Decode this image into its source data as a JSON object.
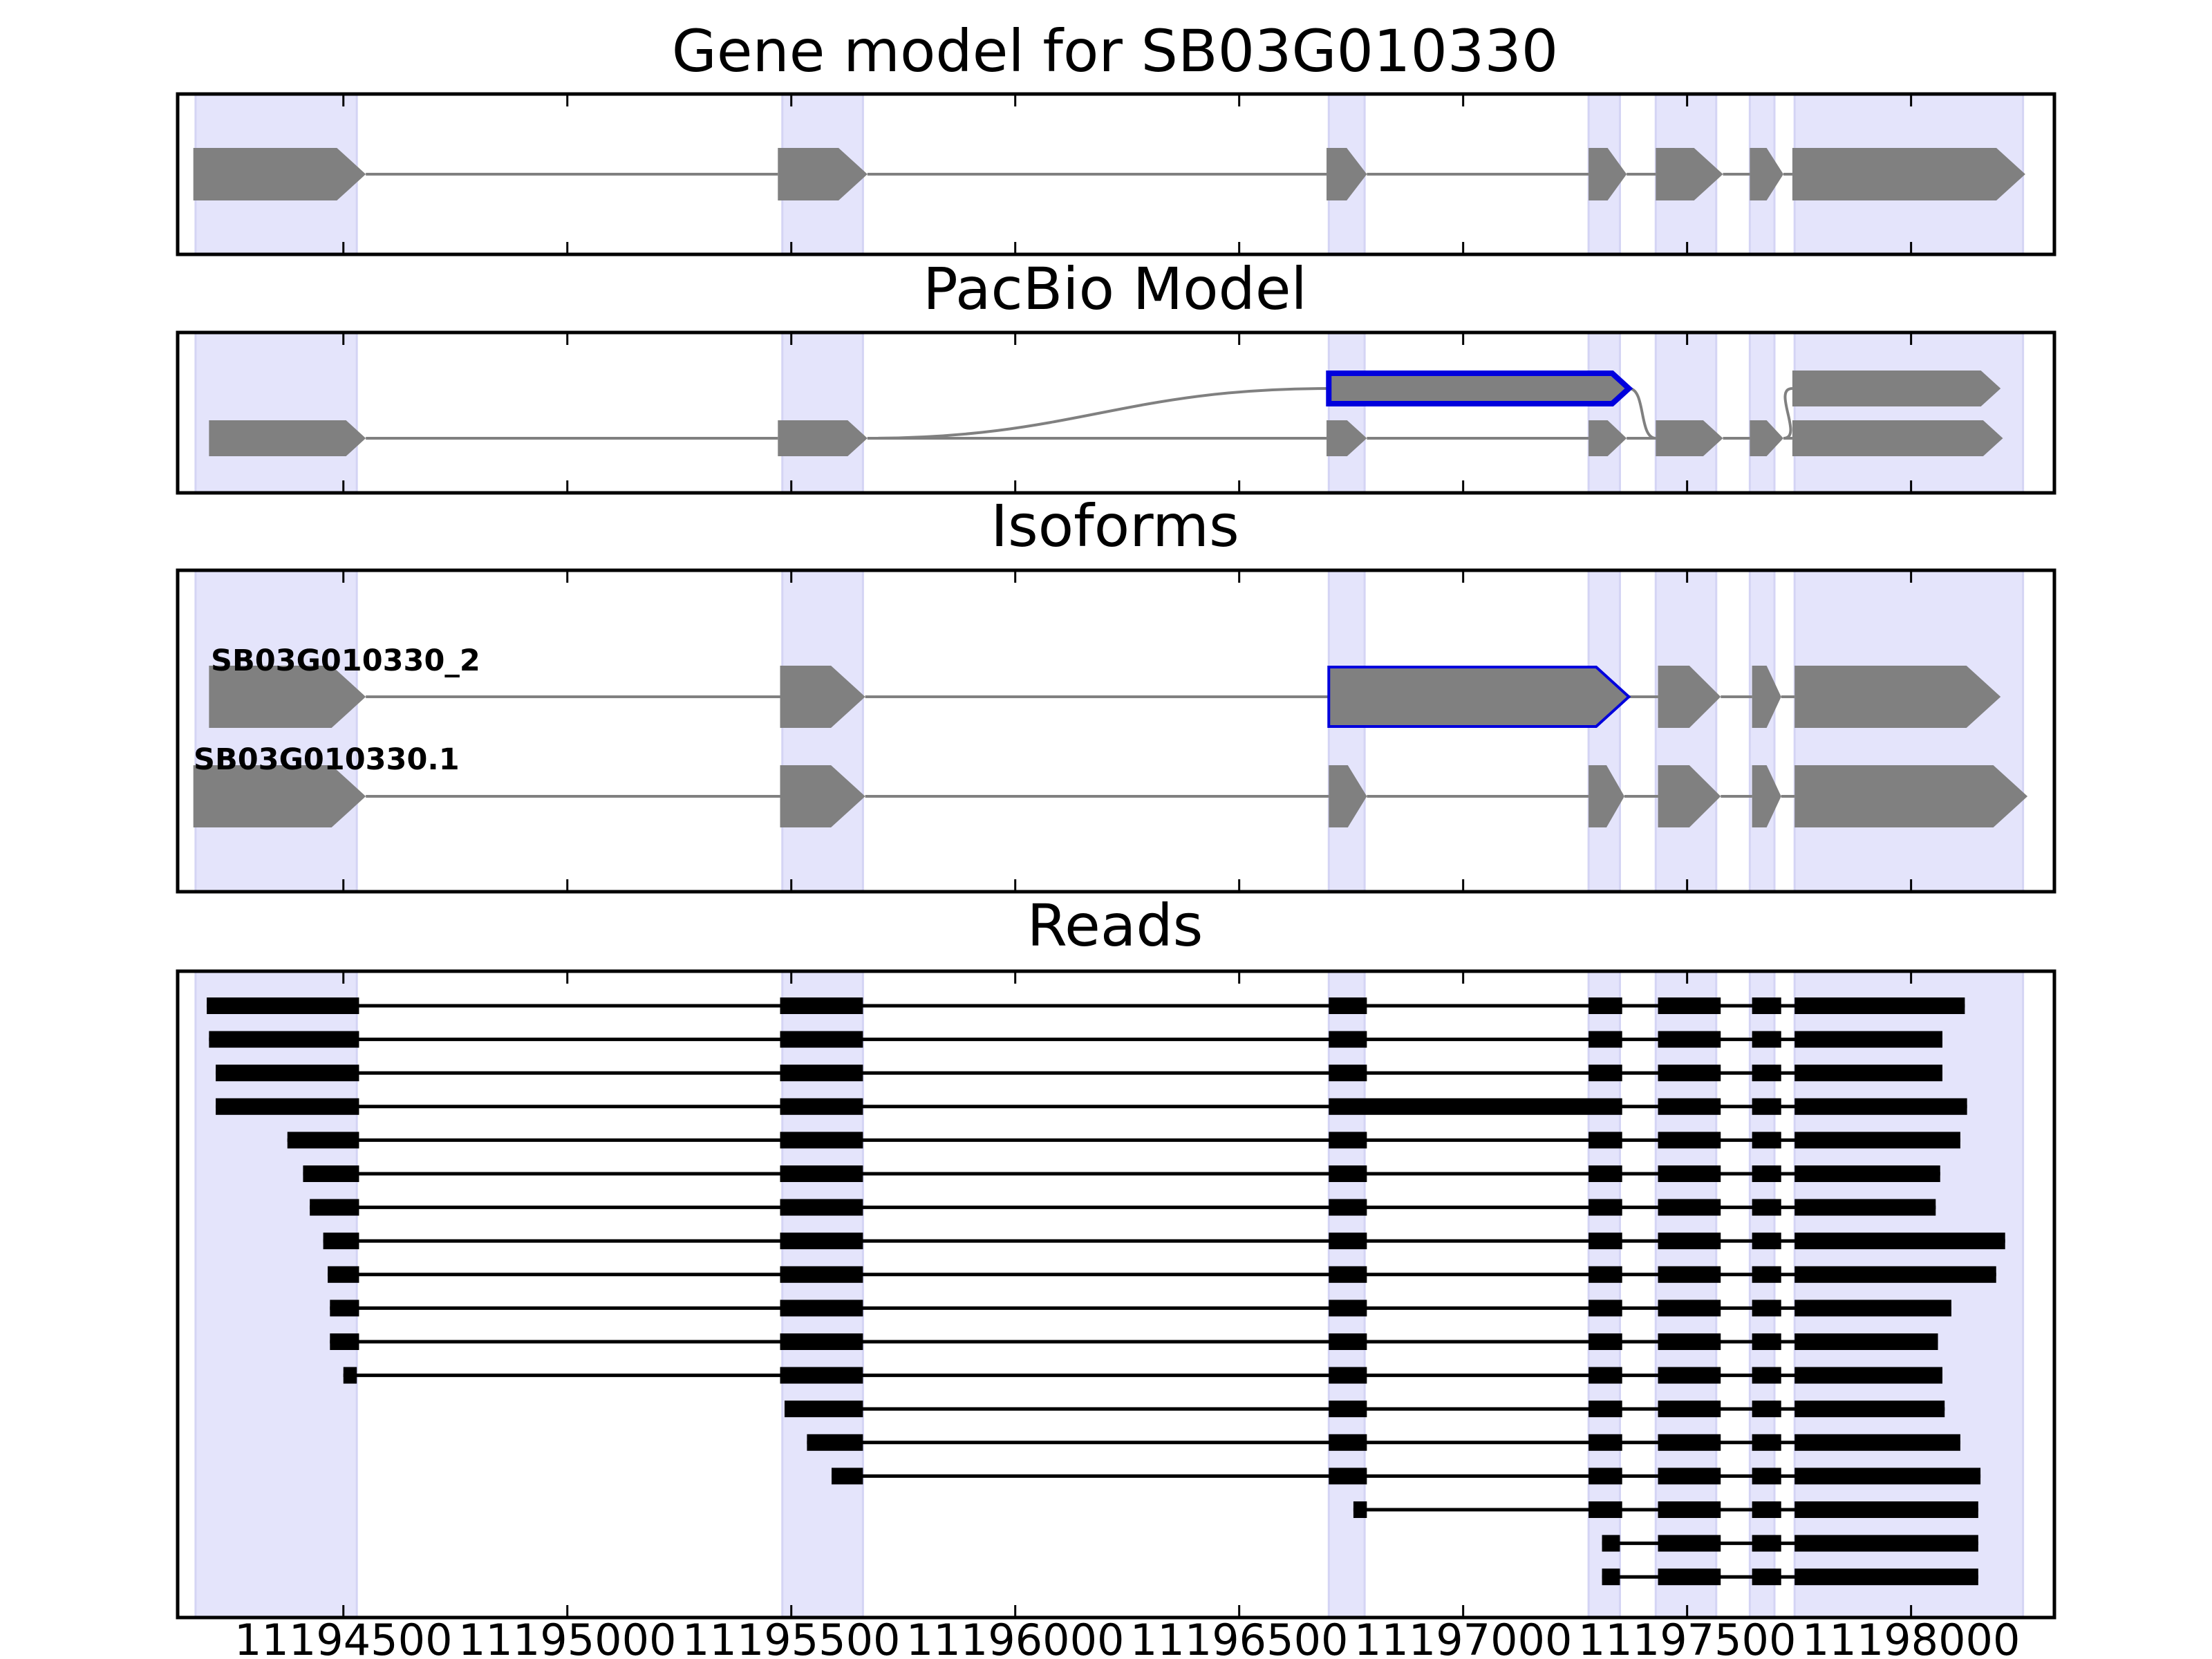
{
  "figure": {
    "panels": [
      {
        "id": "gene-model",
        "title": "Gene model for SB03G010330"
      },
      {
        "id": "pacbio-model",
        "title": "PacBio Model"
      },
      {
        "id": "isoforms",
        "title": "Isoforms"
      },
      {
        "id": "reads",
        "title": "Reads"
      }
    ],
    "x_axis": {
      "ticks": [
        11194500,
        11195000,
        11195500,
        11196000,
        11196500,
        11197000,
        11197500,
        11198000
      ],
      "tick_labels": [
        "11194500",
        "11195000",
        "11195500",
        "11196000",
        "11196500",
        "11197000",
        "11197500",
        "11198000"
      ],
      "xlim": [
        11194130,
        11198320
      ]
    },
    "colors": {
      "exon": "#808080",
      "intron": "#808080",
      "highlight_exon_outline": "#0000dd",
      "read": "#000000",
      "exon_shading": "#e4e4fb"
    },
    "isoform_labels": [
      "SB03G010330_2",
      "SB03G010330.1"
    ]
  },
  "chart_data": {
    "type": "gene_structure",
    "x_unit": "genomic coordinate",
    "shaded_exon_regions": [
      [
        11194170,
        11194530
      ],
      [
        11195480,
        11195660
      ],
      [
        11196700,
        11196780
      ],
      [
        11197280,
        11197350
      ],
      [
        11197430,
        11197565
      ],
      [
        11197640,
        11197695
      ],
      [
        11197740,
        11198250
      ]
    ],
    "gene_model": {
      "exons": [
        [
          11194165,
          11194550
        ],
        [
          11195470,
          11195670
        ],
        [
          11196695,
          11196785
        ],
        [
          11197280,
          11197365
        ],
        [
          11197430,
          11197580
        ],
        [
          11197640,
          11197715
        ],
        [
          11197735,
          11198255
        ]
      ]
    },
    "pacbio_model": {
      "tracks": [
        {
          "row": 0,
          "exons": [
            [
              11196700,
              11197370
            ],
            [
              11197735,
              11198200
            ]
          ],
          "highlighted_exon": 0
        },
        {
          "row": 1,
          "exons": [
            [
              11194200,
              11194550
            ],
            [
              11195470,
              11195670
            ],
            [
              11196695,
              11196785
            ],
            [
              11197280,
              11197365
            ],
            [
              11197430,
              11197580
            ],
            [
              11197640,
              11197715
            ],
            [
              11197735,
              11198205
            ]
          ]
        }
      ]
    },
    "isoforms": [
      {
        "name": "SB03G010330_2",
        "exons": [
          [
            11194200,
            11194550
          ],
          [
            11195475,
            11195665
          ],
          [
            11196700,
            11197370
          ],
          [
            11197435,
            11197575
          ],
          [
            11197645,
            11197710
          ],
          [
            11197740,
            11198200
          ]
        ],
        "highlighted_exon": 2
      },
      {
        "name": "SB03G010330.1",
        "exons": [
          [
            11194165,
            11194550
          ],
          [
            11195475,
            11195665
          ],
          [
            11196700,
            11196785
          ],
          [
            11197280,
            11197360
          ],
          [
            11197435,
            11197575
          ],
          [
            11197645,
            11197710
          ],
          [
            11197740,
            11198260
          ]
        ]
      }
    ],
    "reads": [
      {
        "exons": [
          [
            11194195,
            11194535
          ],
          [
            11195475,
            11195660
          ],
          [
            11196700,
            11196785
          ],
          [
            11197280,
            11197355
          ],
          [
            11197435,
            11197575
          ],
          [
            11197645,
            11197710
          ],
          [
            11197740,
            11198120
          ]
        ]
      },
      {
        "exons": [
          [
            11194200,
            11194535
          ],
          [
            11195475,
            11195660
          ],
          [
            11196700,
            11196785
          ],
          [
            11197280,
            11197355
          ],
          [
            11197435,
            11197575
          ],
          [
            11197645,
            11197710
          ],
          [
            11197740,
            11198070
          ]
        ]
      },
      {
        "exons": [
          [
            11194215,
            11194535
          ],
          [
            11195475,
            11195660
          ],
          [
            11196700,
            11196785
          ],
          [
            11197280,
            11197355
          ],
          [
            11197435,
            11197575
          ],
          [
            11197645,
            11197710
          ],
          [
            11197740,
            11198070
          ]
        ]
      },
      {
        "exons": [
          [
            11194215,
            11194535
          ],
          [
            11195475,
            11195660
          ],
          [
            11196700,
            11197355
          ],
          [
            11197435,
            11197575
          ],
          [
            11197645,
            11197710
          ],
          [
            11197740,
            11198125
          ]
        ]
      },
      {
        "exons": [
          [
            11194375,
            11194535
          ],
          [
            11195475,
            11195660
          ],
          [
            11196700,
            11196785
          ],
          [
            11197280,
            11197355
          ],
          [
            11197435,
            11197575
          ],
          [
            11197645,
            11197710
          ],
          [
            11197740,
            11198110
          ]
        ]
      },
      {
        "exons": [
          [
            11194410,
            11194535
          ],
          [
            11195475,
            11195660
          ],
          [
            11196700,
            11196785
          ],
          [
            11197280,
            11197355
          ],
          [
            11197435,
            11197575
          ],
          [
            11197645,
            11197710
          ],
          [
            11197740,
            11198065
          ]
        ]
      },
      {
        "exons": [
          [
            11194425,
            11194535
          ],
          [
            11195475,
            11195660
          ],
          [
            11196700,
            11196785
          ],
          [
            11197280,
            11197355
          ],
          [
            11197435,
            11197575
          ],
          [
            11197645,
            11197710
          ],
          [
            11197740,
            11198055
          ]
        ]
      },
      {
        "exons": [
          [
            11194455,
            11194535
          ],
          [
            11195475,
            11195660
          ],
          [
            11196700,
            11196785
          ],
          [
            11197280,
            11197355
          ],
          [
            11197435,
            11197575
          ],
          [
            11197645,
            11197710
          ],
          [
            11197740,
            11198210
          ]
        ]
      },
      {
        "exons": [
          [
            11194465,
            11194535
          ],
          [
            11195475,
            11195660
          ],
          [
            11196700,
            11196785
          ],
          [
            11197280,
            11197355
          ],
          [
            11197435,
            11197575
          ],
          [
            11197645,
            11197710
          ],
          [
            11197740,
            11198190
          ]
        ]
      },
      {
        "exons": [
          [
            11194470,
            11194535
          ],
          [
            11195475,
            11195660
          ],
          [
            11196700,
            11196785
          ],
          [
            11197280,
            11197355
          ],
          [
            11197435,
            11197575
          ],
          [
            11197645,
            11197710
          ],
          [
            11197740,
            11198090
          ]
        ]
      },
      {
        "exons": [
          [
            11194470,
            11194535
          ],
          [
            11195475,
            11195660
          ],
          [
            11196700,
            11196785
          ],
          [
            11197280,
            11197355
          ],
          [
            11197435,
            11197575
          ],
          [
            11197645,
            11197710
          ],
          [
            11197740,
            11198060
          ]
        ]
      },
      {
        "exons": [
          [
            11194500,
            11194530
          ],
          [
            11195475,
            11195660
          ],
          [
            11196700,
            11196785
          ],
          [
            11197280,
            11197355
          ],
          [
            11197435,
            11197575
          ],
          [
            11197645,
            11197710
          ],
          [
            11197740,
            11198070
          ]
        ]
      },
      {
        "exons": [
          [
            11195485,
            11195660
          ],
          [
            11196700,
            11196785
          ],
          [
            11197280,
            11197355
          ],
          [
            11197435,
            11197575
          ],
          [
            11197645,
            11197710
          ],
          [
            11197740,
            11198075
          ]
        ]
      },
      {
        "exons": [
          [
            11195535,
            11195660
          ],
          [
            11196700,
            11196785
          ],
          [
            11197280,
            11197355
          ],
          [
            11197435,
            11197575
          ],
          [
            11197645,
            11197710
          ],
          [
            11197740,
            11198110
          ]
        ]
      },
      {
        "exons": [
          [
            11195590,
            11195660
          ],
          [
            11196700,
            11196785
          ],
          [
            11197280,
            11197355
          ],
          [
            11197435,
            11197575
          ],
          [
            11197645,
            11197710
          ],
          [
            11197740,
            11198155
          ]
        ]
      },
      {
        "exons": [
          [
            11196755,
            11196785
          ],
          [
            11197280,
            11197355
          ],
          [
            11197435,
            11197575
          ],
          [
            11197645,
            11197710
          ],
          [
            11197740,
            11198150
          ]
        ]
      },
      {
        "exons": [
          [
            11197310,
            11197350
          ],
          [
            11197435,
            11197575
          ],
          [
            11197645,
            11197710
          ],
          [
            11197740,
            11198150
          ]
        ]
      },
      {
        "exons": [
          [
            11197310,
            11197350
          ],
          [
            11197435,
            11197575
          ],
          [
            11197645,
            11197710
          ],
          [
            11197740,
            11198150
          ]
        ]
      }
    ]
  }
}
